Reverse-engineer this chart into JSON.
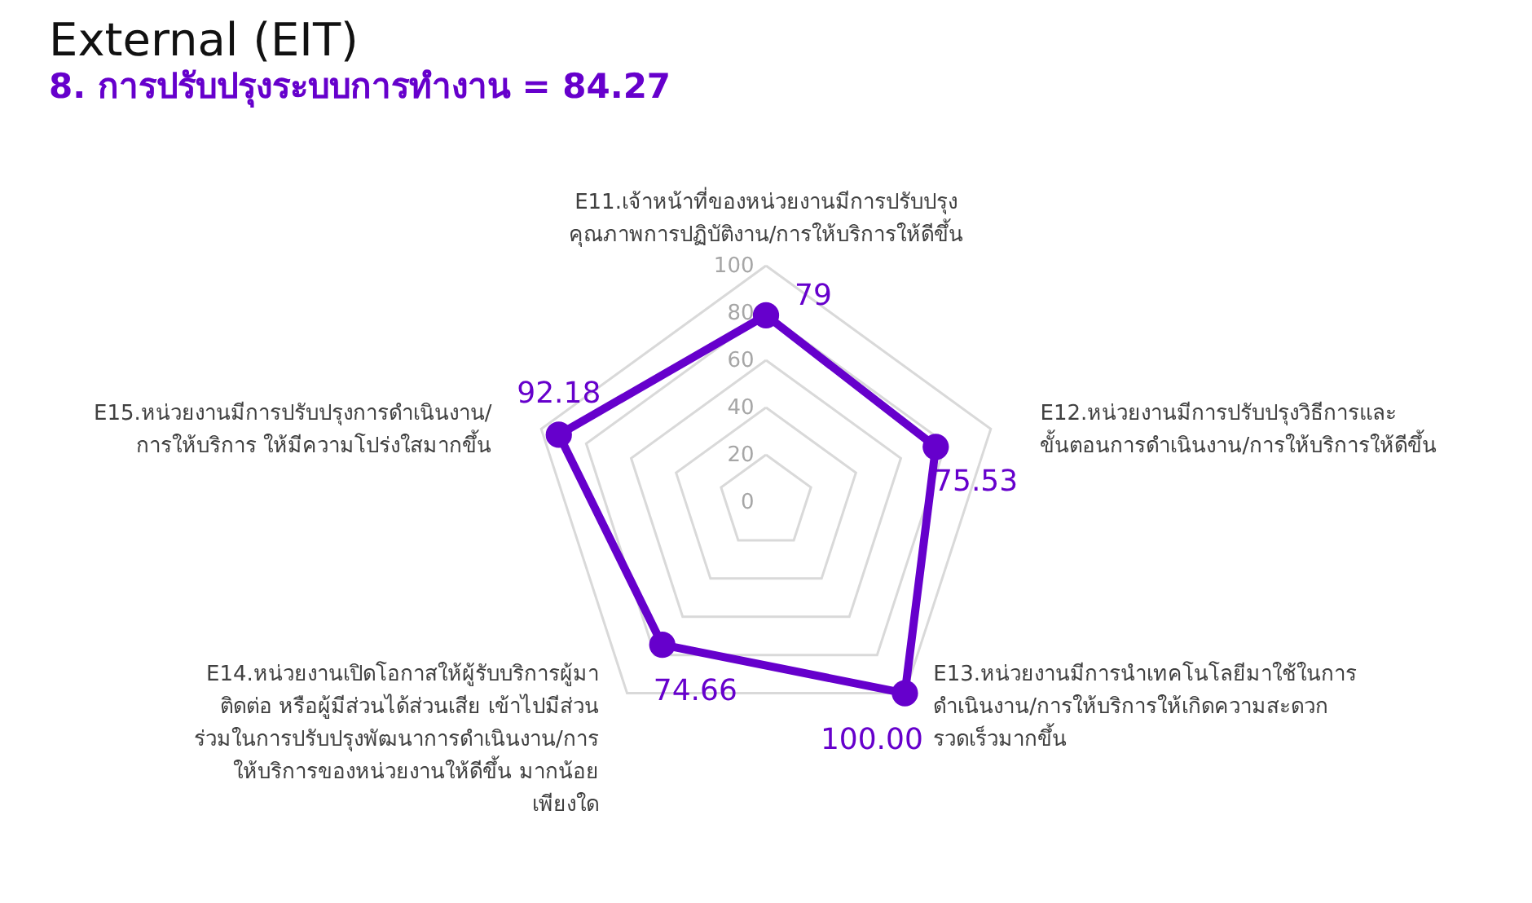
{
  "chart_data": {
    "type": "radar",
    "title": "External (EIT)",
    "subtitle": "8. การปรับปรุงระบบการทำงาน  = 84.27",
    "categories": [
      "E11.เจ้าหน้าที่ของหน่วยงานมีการปรับปรุง\nคุณภาพการปฏิบัติงาน/การให้บริการให้ดีขึ้น",
      "E12.หน่วยงานมีการปรับปรุงวิธีการและ\nขั้นตอนการดำเนินงาน/การให้บริการให้ดีขึ้น",
      "E13.หน่วยงานมีการนำเทคโนโลยีมาใช้ในการ\nดำเนินงาน/การให้บริการให้เกิดความสะดวก\nรวดเร็วมากขึ้น",
      "E14.หน่วยงานเปิดโอกาสให้ผู้รับบริการผู้มา\nติดต่อ หรือผู้มีส่วนได้ส่วนเสีย เข้าไปมีส่วน\nร่วมในการปรับปรุงพัฒนาการดำเนินงาน/การ\nให้บริการของหน่วยงานให้ดีขึ้น มากน้อย\nเพียงใด",
      "E15.หน่วยงานมีการปรับปรุงการดำเนินงาน/\nการให้บริการ ให้มีความโปร่งใสมากขึ้น"
    ],
    "series": [
      {
        "color": "#6600cc",
        "values": [
          79,
          75.53,
          100,
          74.66,
          92.18
        ],
        "value_labels": [
          "79",
          "75.53",
          "100.00",
          "74.66",
          "92.18"
        ]
      }
    ],
    "ylim": [
      0,
      100
    ],
    "yticks": [
      0,
      20,
      40,
      60,
      80,
      100
    ],
    "grid": true,
    "marker": "circle"
  }
}
